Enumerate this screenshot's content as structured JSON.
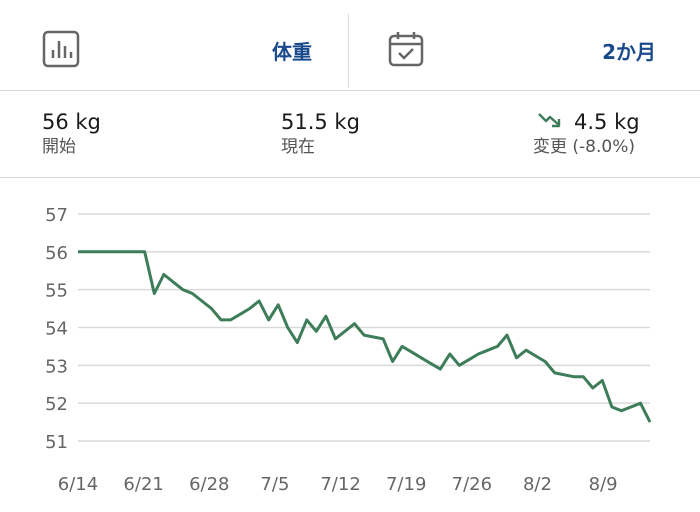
{
  "toolbar": {
    "metric_label": "体重",
    "metric_icon": "bar-chart-icon",
    "range_label": "2か月",
    "range_icon": "calendar-check-icon"
  },
  "stats": {
    "start": {
      "value": "56 kg",
      "label": "開始"
    },
    "current": {
      "value": "51.5 kg",
      "label": "現在"
    },
    "change": {
      "value": "4.5 kg",
      "label": "変更 (-8.0%)",
      "icon": "trending-down-icon"
    }
  },
  "colors": {
    "accent": "#1b4a8c",
    "line": "#3e7d5a",
    "grid": "#d9d9d9",
    "axis_text": "#666666"
  },
  "chart_data": {
    "type": "line",
    "title": "",
    "xlabel": "",
    "ylabel": "",
    "ylim": [
      51,
      57
    ],
    "yticks": [
      "57",
      "56",
      "55",
      "54",
      "53",
      "52",
      "51"
    ],
    "ytick_values": [
      57,
      56,
      55,
      54,
      53,
      52,
      51
    ],
    "xticks": [
      "6/14",
      "6/21",
      "6/28",
      "7/5",
      "7/12",
      "7/19",
      "7/26",
      "8/2",
      "8/9"
    ],
    "grid": true,
    "x_start": "6/14",
    "x_end": "8/14",
    "series": [
      {
        "values": [
          56,
          56,
          56,
          56,
          56,
          56,
          56,
          56,
          54.9,
          55.4,
          55.2,
          55.0,
          54.9,
          54.7,
          54.5,
          54.2,
          54.2,
          54.35,
          54.5,
          54.7,
          54.2,
          54.6,
          54.0,
          53.6,
          54.2,
          53.9,
          54.3,
          53.7,
          53.9,
          54.1,
          53.8,
          53.75,
          53.7,
          53.1,
          53.5,
          53.35,
          53.2,
          53.05,
          52.9,
          53.3,
          53.0,
          53.15,
          53.3,
          53.4,
          53.5,
          53.8,
          53.2,
          53.4,
          53.25,
          53.1,
          52.8,
          52.75,
          52.7,
          52.7,
          52.4,
          52.6,
          51.9,
          51.8,
          51.9,
          52.0,
          51.5
        ]
      }
    ]
  }
}
